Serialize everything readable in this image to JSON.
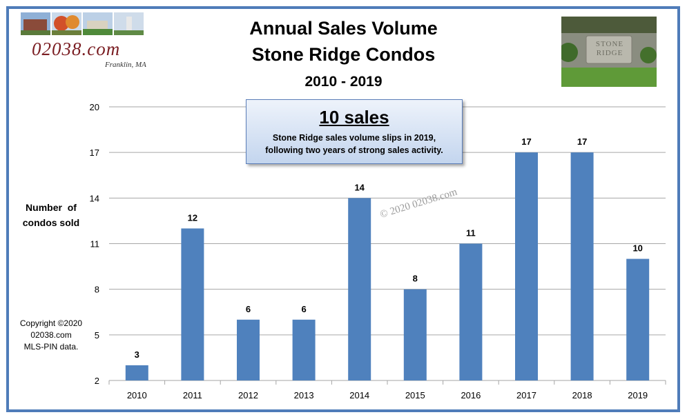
{
  "titles": {
    "line1": "Annual Sales Volume",
    "line2": "Stone Ridge Condos",
    "line3": "2010 - 2019"
  },
  "logo": {
    "brand": "02038.com",
    "town": "Franklin, MA"
  },
  "stone_photo": {
    "sign_line1": "STONE",
    "sign_line2": "RIDGE"
  },
  "callout": {
    "headline": "10 sales",
    "line1": "Stone Ridge sales volume slips in 2019,",
    "line2": "following two years of strong sales activity."
  },
  "side_notes": {
    "ylabel_line1": "Number  of",
    "ylabel_line2": "condos sold",
    "copyright_line1": "Copyright ©2020",
    "copyright_line2": "02038.com",
    "copyright_line3": "MLS-PIN data."
  },
  "watermark": "© 2020 02038.com",
  "colors": {
    "bar": "#4f81bd",
    "frame": "#4f7cb9",
    "grid": "#a6a6a6",
    "watermark": "#9a9a9a"
  },
  "chart_data": {
    "type": "bar",
    "categories": [
      "2010",
      "2011",
      "2012",
      "2013",
      "2014",
      "2015",
      "2016",
      "2017",
      "2018",
      "2019"
    ],
    "values": [
      3,
      12,
      6,
      6,
      14,
      8,
      11,
      17,
      17,
      10
    ],
    "data_labels": [
      "3",
      "12",
      "6",
      "6",
      "14",
      "8",
      "11",
      "17",
      "17",
      "10"
    ],
    "y_ticks": [
      2,
      5,
      8,
      11,
      14,
      17,
      20
    ],
    "y_tick_labels": [
      "2",
      "5",
      "8",
      "11",
      "14",
      "17",
      "20"
    ],
    "ylim": [
      2,
      20
    ],
    "title": "Annual Sales Volume",
    "xlabel": "",
    "ylabel": "Number  of condos sold",
    "grid": true,
    "legend": "none"
  }
}
